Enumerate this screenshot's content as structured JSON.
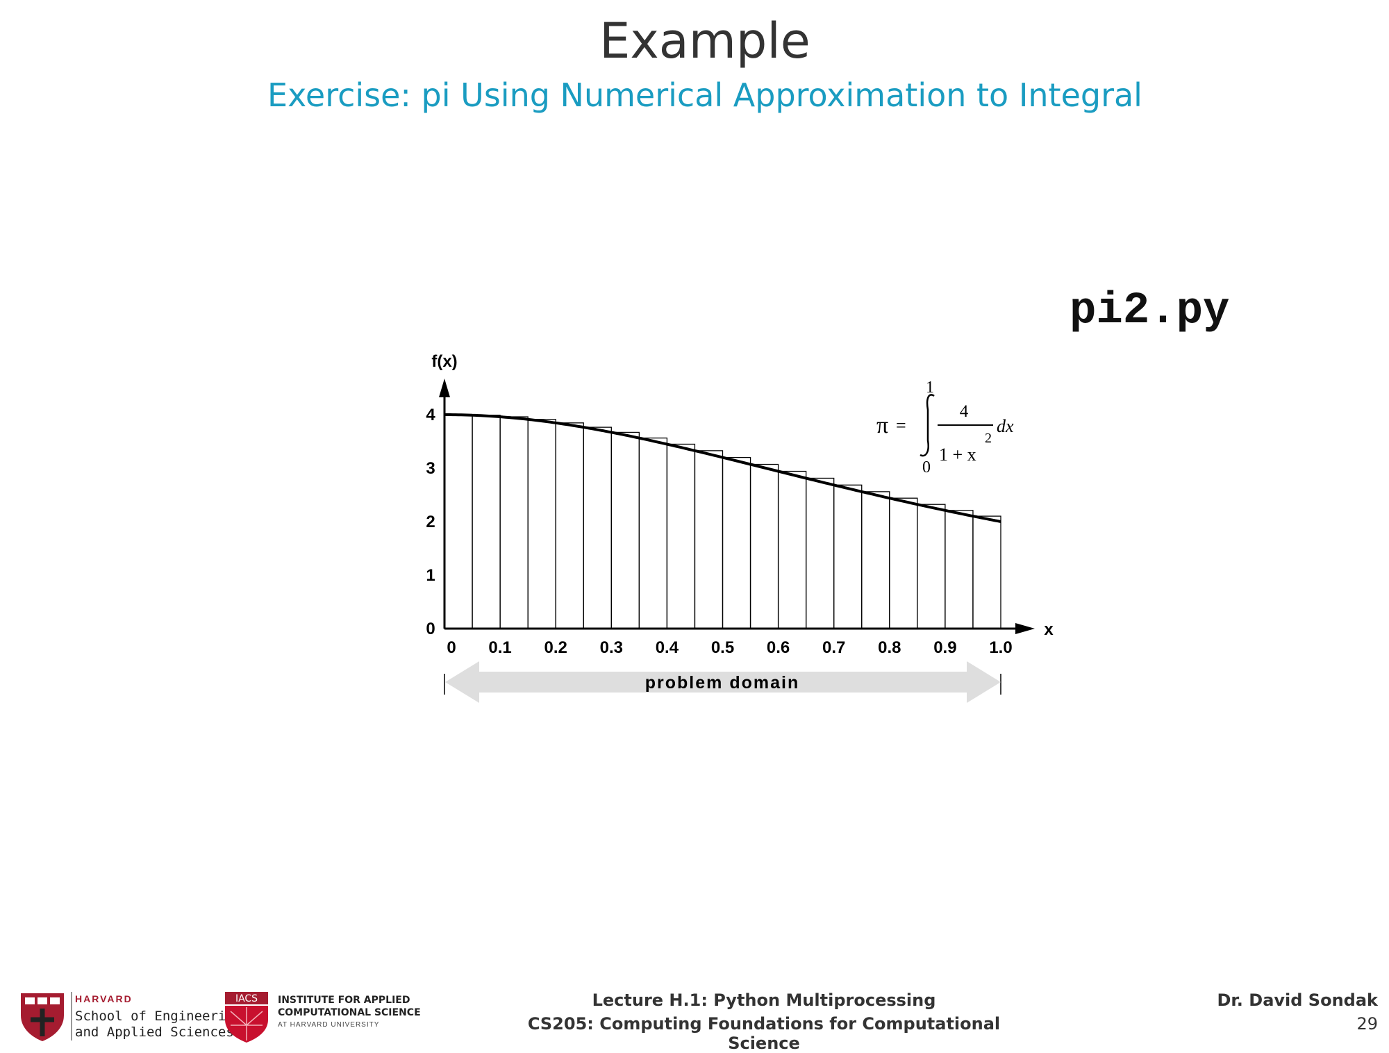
{
  "slide": {
    "title": "Example",
    "subtitle": "Exercise: pi Using Numerical Approximation to Integral",
    "filename": "pi2.py",
    "colors": {
      "subtitle": "#1a9cc1",
      "title": "#333333",
      "harvard_red": "#a51c30"
    }
  },
  "diagram": {
    "y_axis_label": "f(x)",
    "x_axis_label": "x",
    "y_ticks": [
      "0",
      "1",
      "2",
      "3",
      "4"
    ],
    "x_ticks": [
      "0",
      "0.1",
      "0.2",
      "0.3",
      "0.4",
      "0.5",
      "0.6",
      "0.7",
      "0.8",
      "0.9",
      "1.0"
    ],
    "domain_label": "problem domain",
    "formula": {
      "lhs": "π",
      "equals": "=",
      "upper": "1",
      "lower": "0",
      "numerator": "4",
      "denominator": "1 + x",
      "exponent": "2",
      "differential": "dx"
    }
  },
  "footer": {
    "lecture": "Lecture H.1: Python Multiprocessing",
    "course": "CS205: Computing Foundations for Computational Science",
    "author": "Dr. David Sondak",
    "page": "29",
    "harvard": {
      "name": "HARVARD",
      "school_line1": "School of Engineering",
      "school_line2": "and Applied Sciences"
    },
    "iacs": {
      "badge": "IACS",
      "line1": "INSTITUTE FOR APPLIED",
      "line2": "COMPUTATIONAL SCIENCE",
      "line3": "AT HARVARD UNIVERSITY"
    }
  }
}
